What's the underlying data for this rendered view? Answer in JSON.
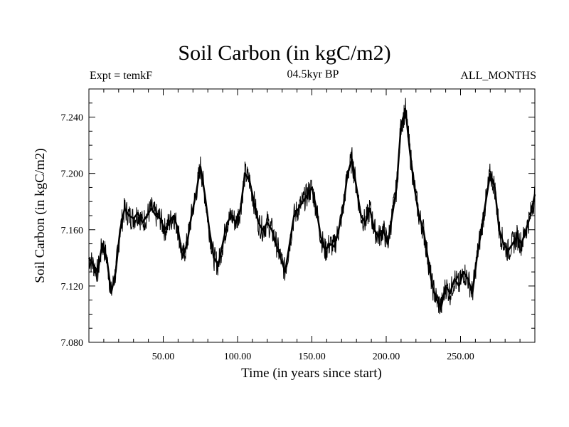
{
  "chart_data": {
    "type": "line",
    "title": "Soil Carbon (in kgC/m2)",
    "subtitle_left": "Expt = temkF",
    "subtitle_center": "04.5kyr BP",
    "subtitle_right": "ALL_MONTHS",
    "xlabel": "Time (in years since start)",
    "ylabel": "Soil Carbon (in kgC/m2)",
    "xlim": [
      0,
      300
    ],
    "ylim": [
      7.08,
      7.26
    ],
    "xticks": [
      50,
      100,
      150,
      200,
      250
    ],
    "xtick_labels": [
      "50.00",
      "100.00",
      "150.00",
      "200.00",
      "250.00"
    ],
    "yticks": [
      7.08,
      7.12,
      7.16,
      7.2,
      7.24
    ],
    "ytick_labels": [
      "7.080",
      "7.120",
      "7.160",
      "7.200",
      "7.240"
    ],
    "series": [
      {
        "name": "Soil Carbon",
        "x": [
          0,
          3,
          6,
          9,
          12,
          15,
          18,
          21,
          24,
          27,
          30,
          33,
          36,
          39,
          42,
          45,
          48,
          51,
          54,
          57,
          60,
          63,
          66,
          69,
          72,
          75,
          78,
          81,
          84,
          87,
          90,
          93,
          96,
          99,
          102,
          105,
          108,
          111,
          114,
          117,
          120,
          123,
          126,
          129,
          132,
          135,
          138,
          141,
          144,
          147,
          150,
          153,
          156,
          159,
          162,
          165,
          168,
          171,
          174,
          177,
          180,
          183,
          186,
          189,
          192,
          195,
          198,
          201,
          204,
          207,
          210,
          213,
          216,
          219,
          222,
          225,
          228,
          231,
          234,
          237,
          240,
          243,
          246,
          249,
          252,
          255,
          258,
          261,
          264,
          267,
          270,
          273,
          276,
          279,
          282,
          285,
          288,
          291,
          294,
          297,
          300
        ],
        "y": [
          7.14,
          7.135,
          7.13,
          7.15,
          7.14,
          7.115,
          7.13,
          7.16,
          7.175,
          7.17,
          7.168,
          7.172,
          7.165,
          7.17,
          7.175,
          7.17,
          7.168,
          7.16,
          7.165,
          7.17,
          7.16,
          7.14,
          7.15,
          7.17,
          7.185,
          7.205,
          7.185,
          7.16,
          7.14,
          7.135,
          7.15,
          7.165,
          7.17,
          7.165,
          7.175,
          7.2,
          7.195,
          7.18,
          7.165,
          7.16,
          7.165,
          7.16,
          7.15,
          7.14,
          7.13,
          7.15,
          7.17,
          7.175,
          7.18,
          7.185,
          7.19,
          7.175,
          7.155,
          7.145,
          7.15,
          7.148,
          7.16,
          7.175,
          7.2,
          7.21,
          7.19,
          7.17,
          7.165,
          7.175,
          7.16,
          7.155,
          7.16,
          7.15,
          7.17,
          7.19,
          7.235,
          7.245,
          7.215,
          7.19,
          7.17,
          7.16,
          7.14,
          7.12,
          7.11,
          7.105,
          7.12,
          7.115,
          7.125,
          7.12,
          7.13,
          7.125,
          7.115,
          7.14,
          7.16,
          7.18,
          7.2,
          7.19,
          7.16,
          7.15,
          7.145,
          7.15,
          7.155,
          7.15,
          7.16,
          7.17,
          7.185
        ]
      }
    ]
  }
}
